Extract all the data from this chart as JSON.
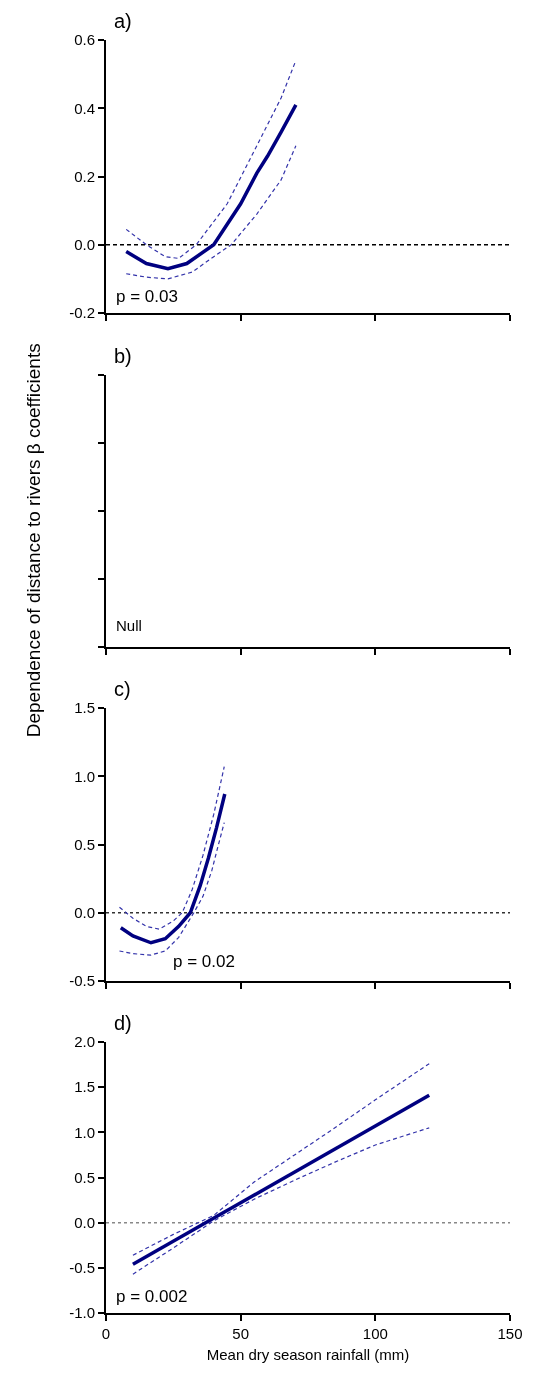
{
  "chart_data": [
    {
      "type": "line",
      "title": "a)",
      "annotations": [
        "p = 0.03"
      ],
      "xlim": [
        0,
        150
      ],
      "xticks": [
        {
          "value": 0,
          "label": null
        },
        {
          "value": 50,
          "label": null
        },
        {
          "value": 100,
          "label": null
        },
        {
          "value": 150,
          "label": null
        }
      ],
      "ylim": [
        -0.2,
        0.6
      ],
      "yticks": [
        {
          "value": -0.2,
          "label": "-0.2"
        },
        {
          "value": 0,
          "label": "0.0"
        },
        {
          "value": 0.2,
          "label": "0.2"
        },
        {
          "value": 0.4,
          "label": "0.4"
        },
        {
          "value": 0.6,
          "label": "0.6"
        }
      ],
      "tick_labels": "y",
      "grid": false,
      "ref_lines": [
        {
          "axis": "y",
          "value": 0,
          "color": "#000000",
          "line_style": "dashed"
        }
      ],
      "series": [
        {
          "color": "#000080",
          "line_style": "solid",
          "x": [
            7.5,
            15,
            23,
            30,
            40,
            50,
            56,
            60,
            65,
            70.5
          ],
          "values": [
            -0.02,
            -0.055,
            -0.07,
            -0.055,
            0,
            0.12,
            0.21,
            0.26,
            0.33,
            0.41
          ]
        },
        {
          "color": "#3333aa",
          "line_style": "dashed",
          "x": [
            7.5,
            15,
            22,
            27,
            33.5,
            45,
            56,
            65,
            70.5
          ],
          "values": [
            0.045,
            0.0,
            -0.035,
            -0.04,
            0,
            0.12,
            0.29,
            0.43,
            0.54
          ]
        },
        {
          "color": "#3333aa",
          "line_style": "dashed",
          "x": [
            7.5,
            15,
            23,
            32,
            40,
            46.5,
            56,
            65,
            70.5
          ],
          "values": [
            -0.085,
            -0.095,
            -0.1,
            -0.08,
            -0.035,
            0,
            0.09,
            0.19,
            0.29
          ]
        }
      ]
    },
    {
      "type": "other",
      "title": "b)",
      "ylabel": "Dependence of distance to rivers β coefficients",
      "annotations": [
        "Null"
      ]
    },
    {
      "type": "line",
      "title": "c)",
      "annotations": [
        "p = 0.02"
      ],
      "xlim": [
        0,
        150
      ],
      "xticks": [
        {
          "value": 0,
          "label": null
        },
        {
          "value": 50,
          "label": null
        },
        {
          "value": 100,
          "label": null
        },
        {
          "value": 150,
          "label": null
        }
      ],
      "ylim": [
        -0.5,
        1.5
      ],
      "yticks": [
        {
          "value": -0.5,
          "label": "-0.5"
        },
        {
          "value": 0,
          "label": "0.0"
        },
        {
          "value": 0.5,
          "label": "0.5"
        },
        {
          "value": 1,
          "label": "1.0"
        },
        {
          "value": 1.5,
          "label": "1.5"
        }
      ],
      "tick_labels": "y",
      "grid": false,
      "ref_lines": [
        {
          "axis": "y",
          "value": 0,
          "color": "#333333",
          "line_style": "dotted"
        }
      ],
      "series": [
        {
          "color": "#000080",
          "line_style": "solid",
          "x": [
            5.5,
            10,
            16.7,
            22,
            27,
            31.3,
            35,
            38,
            41,
            44.1
          ],
          "values": [
            -0.11,
            -0.17,
            -0.22,
            -0.19,
            -0.1,
            0,
            0.2,
            0.4,
            0.62,
            0.87
          ]
        },
        {
          "color": "#3333aa",
          "line_style": "dashed",
          "x": [
            5,
            10,
            15,
            19.8,
            25,
            28.3,
            32,
            36,
            40,
            43.9
          ],
          "values": [
            0.04,
            -0.04,
            -0.1,
            -0.12,
            -0.06,
            0,
            0.17,
            0.42,
            0.72,
            1.07
          ]
        },
        {
          "color": "#3333aa",
          "line_style": "dashed",
          "x": [
            5,
            10,
            16.7,
            22,
            27,
            32.6,
            36,
            39.3,
            41.5,
            43.9
          ],
          "values": [
            -0.28,
            -0.3,
            -0.31,
            -0.28,
            -0.18,
            0,
            0.12,
            0.31,
            0.48,
            0.66
          ]
        }
      ]
    },
    {
      "type": "line",
      "title": "d)",
      "xlabel": "Mean dry season rainfall (mm)",
      "annotations": [
        "p = 0.002"
      ],
      "xlim": [
        0,
        150
      ],
      "xticks": [
        0,
        50,
        100,
        150
      ],
      "ylim": [
        -1.0,
        2.0
      ],
      "yticks": [
        {
          "value": -1,
          "label": "-1.0"
        },
        {
          "value": -0.5,
          "label": "-0.5"
        },
        {
          "value": 0,
          "label": "0.0"
        },
        {
          "value": 0.5,
          "label": "0.5"
        },
        {
          "value": 1,
          "label": "1.0"
        },
        {
          "value": 1.5,
          "label": "1.5"
        },
        {
          "value": 2,
          "label": "2.0"
        }
      ],
      "grid": false,
      "ref_lines": [
        {
          "axis": "y",
          "value": 0,
          "color": "#888888",
          "line_style": "dotted"
        }
      ],
      "series": [
        {
          "color": "#000080",
          "line_style": "solid",
          "x": [
            10,
            120
          ],
          "values": [
            -0.46,
            1.41
          ]
        },
        {
          "color": "#3333aa",
          "line_style": "dashed",
          "x": [
            10,
            25,
            40,
            55,
            70,
            85,
            100,
            120
          ],
          "values": [
            -0.36,
            -0.13,
            0.08,
            0.45,
            0.75,
            1.05,
            1.36,
            1.76
          ]
        },
        {
          "color": "#3333aa",
          "line_style": "dashed",
          "x": [
            10,
            25,
            40,
            55,
            70,
            85,
            100,
            120
          ],
          "values": [
            -0.57,
            -0.28,
            0.02,
            0.26,
            0.47,
            0.67,
            0.86,
            1.05
          ]
        }
      ]
    }
  ]
}
